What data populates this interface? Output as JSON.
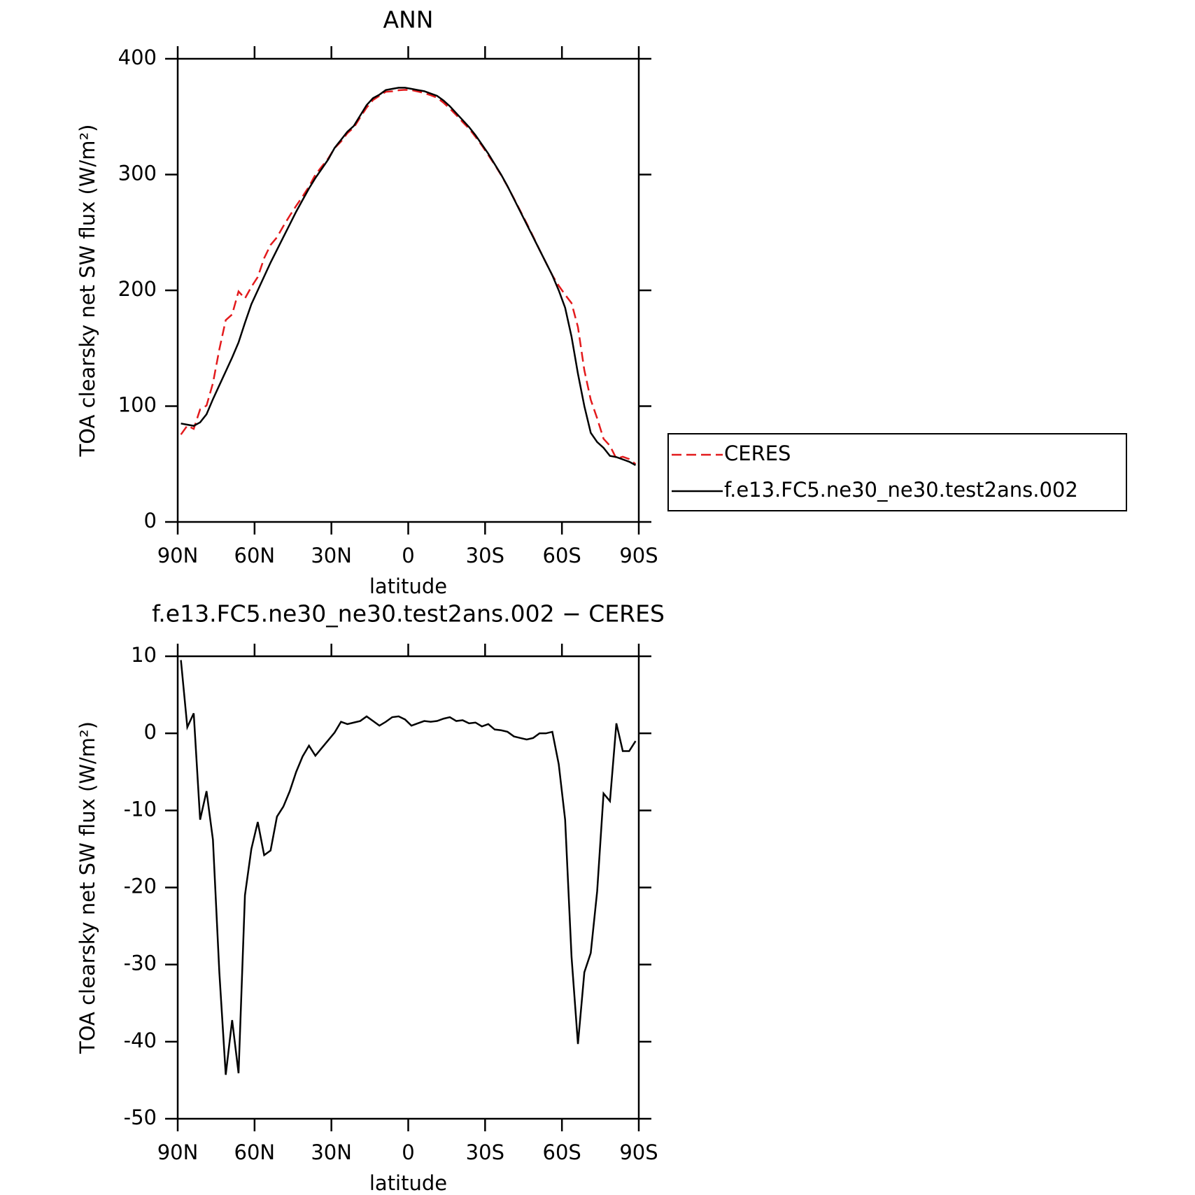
{
  "chart_data": [
    {
      "type": "line",
      "title": "ANN",
      "xlabel": "latitude",
      "ylabel": "TOA clearsky net SW flux (W/m²)",
      "x": [
        88.75,
        86.25,
        83.75,
        81.25,
        78.75,
        76.25,
        73.75,
        71.25,
        68.75,
        66.25,
        63.75,
        61.25,
        58.75,
        56.25,
        53.75,
        51.25,
        48.75,
        46.25,
        43.75,
        41.25,
        38.75,
        36.25,
        33.75,
        31.25,
        28.75,
        26.25,
        23.75,
        21.25,
        18.75,
        16.25,
        13.75,
        11.25,
        8.75,
        6.25,
        3.75,
        1.25,
        -1.25,
        -3.75,
        -6.25,
        -8.75,
        -11.25,
        -13.75,
        -16.25,
        -18.75,
        -21.25,
        -23.75,
        -26.25,
        -28.75,
        -31.25,
        -33.75,
        -36.25,
        -38.75,
        -41.25,
        -43.75,
        -46.25,
        -48.75,
        -51.25,
        -53.75,
        -56.25,
        -58.75,
        -61.25,
        -63.75,
        -66.25,
        -68.75,
        -71.25,
        -73.75,
        -76.25,
        -78.75,
        -81.25,
        -83.75,
        -86.25,
        -88.75
      ],
      "series": [
        {
          "name": "CERES",
          "color": "#e31a1c",
          "dashed": true,
          "values": [
            75.5,
            83.2,
            80.4,
            97.2,
            100.5,
            119.8,
            149,
            174.3,
            179.2,
            199.1,
            193,
            203,
            211.5,
            227.8,
            239.2,
            245.8,
            255.5,
            264.5,
            273,
            281,
            289.6,
            299.9,
            306.9,
            313.9,
            322.9,
            328.5,
            335.8,
            340.6,
            349.4,
            357.8,
            364.4,
            368,
            371.5,
            371.9,
            372.8,
            373.2,
            373,
            371.7,
            370.4,
            368.5,
            366.4,
            362.1,
            356.9,
            351.4,
            345.3,
            339.7,
            332.6,
            325.1,
            316.8,
            308.5,
            299.6,
            289.8,
            279.4,
            268.6,
            257.8,
            246.6,
            235,
            224,
            213,
            204,
            196.2,
            189,
            168.3,
            131,
            105.5,
            89.5,
            71.8,
            65.8,
            54.7,
            56.3,
            54.3,
            50
          ]
        },
        {
          "name": "f.e13.FC5.ne30_ne30.test2ans.002",
          "color": "#000000",
          "dashed": false,
          "values": [
            85,
            84,
            83,
            86,
            93,
            106,
            118,
            130,
            142,
            155,
            172,
            188,
            200,
            212,
            224,
            235,
            246,
            257,
            268,
            278,
            288,
            297,
            305,
            313,
            323,
            330,
            337,
            342,
            351,
            360,
            366,
            369,
            373,
            374,
            375,
            375,
            374,
            373,
            372,
            370,
            368,
            364,
            359,
            353,
            347,
            341,
            334,
            326,
            318,
            309,
            300,
            290,
            279,
            268,
            257,
            246,
            235,
            224,
            213,
            200,
            185,
            160,
            128,
            100,
            77,
            69,
            64,
            57,
            56,
            54,
            52,
            49
          ]
        }
      ],
      "xlim": [
        90,
        -90
      ],
      "xticks": [
        {
          "value": 90,
          "label": "90N"
        },
        {
          "value": 60,
          "label": "60N"
        },
        {
          "value": 30,
          "label": "30N"
        },
        0,
        {
          "value": -30,
          "label": "30S"
        },
        {
          "value": -60,
          "label": "60S"
        },
        {
          "value": -90,
          "label": "90S"
        }
      ],
      "ylim": [
        0,
        400
      ],
      "yticks": [
        0,
        100,
        200,
        300,
        400
      ],
      "legend": "right"
    },
    {
      "type": "line",
      "title": "f.e13.FC5.ne30_ne30.test2ans.002 − CERES",
      "xlabel": "latitude",
      "ylabel": "TOA clearsky net SW flux (W/m²)",
      "x": [
        88.75,
        86.25,
        83.75,
        81.25,
        78.75,
        76.25,
        73.75,
        71.25,
        68.75,
        66.25,
        63.75,
        61.25,
        58.75,
        56.25,
        53.75,
        51.25,
        48.75,
        46.25,
        43.75,
        41.25,
        38.75,
        36.25,
        33.75,
        31.25,
        28.75,
        26.25,
        23.75,
        21.25,
        18.75,
        16.25,
        13.75,
        11.25,
        8.75,
        6.25,
        3.75,
        1.25,
        -1.25,
        -3.75,
        -6.25,
        -8.75,
        -11.25,
        -13.75,
        -16.25,
        -18.75,
        -21.25,
        -23.75,
        -26.25,
        -28.75,
        -31.25,
        -33.75,
        -36.25,
        -38.75,
        -41.25,
        -43.75,
        -46.25,
        -48.75,
        -51.25,
        -53.75,
        -56.25,
        -58.75,
        -61.25,
        -63.75,
        -66.25,
        -68.75,
        -71.25,
        -73.75,
        -76.25,
        -78.75,
        -81.25,
        -83.75,
        -86.25,
        -88.75
      ],
      "series": [
        {
          "color": "#000000",
          "dashed": false,
          "values": [
            9.5,
            0.8,
            2.6,
            -11.2,
            -7.5,
            -13.8,
            -31,
            -44.3,
            -37.2,
            -44.1,
            -21,
            -15,
            -11.5,
            -15.8,
            -15.2,
            -10.8,
            -9.5,
            -7.5,
            -5,
            -3,
            -1.6,
            -2.9,
            -1.9,
            -0.9,
            0.1,
            1.5,
            1.2,
            1.4,
            1.6,
            2.2,
            1.6,
            1.0,
            1.5,
            2.1,
            2.2,
            1.8,
            1.0,
            1.3,
            1.6,
            1.5,
            1.6,
            1.9,
            2.1,
            1.6,
            1.7,
            1.3,
            1.4,
            0.9,
            1.2,
            0.5,
            0.4,
            0.2,
            -0.4,
            -0.6,
            -0.8,
            -0.6,
            0,
            0,
            0.2,
            -4,
            -11.2,
            -29,
            -40.3,
            -31,
            -28.5,
            -20.5,
            -7.8,
            -8.8,
            1.3,
            -2.3,
            -2.3,
            -1
          ]
        }
      ],
      "xlim": [
        90,
        -90
      ],
      "xticks": [
        {
          "value": 90,
          "label": "90N"
        },
        {
          "value": 60,
          "label": "60N"
        },
        {
          "value": 30,
          "label": "30N"
        },
        0,
        {
          "value": -30,
          "label": "30S"
        },
        {
          "value": -60,
          "label": "60S"
        },
        {
          "value": -90,
          "label": "90S"
        }
      ],
      "ylim": [
        -50,
        10
      ],
      "yticks": [
        -50,
        -40,
        -30,
        -20,
        -10,
        0,
        10
      ]
    }
  ]
}
